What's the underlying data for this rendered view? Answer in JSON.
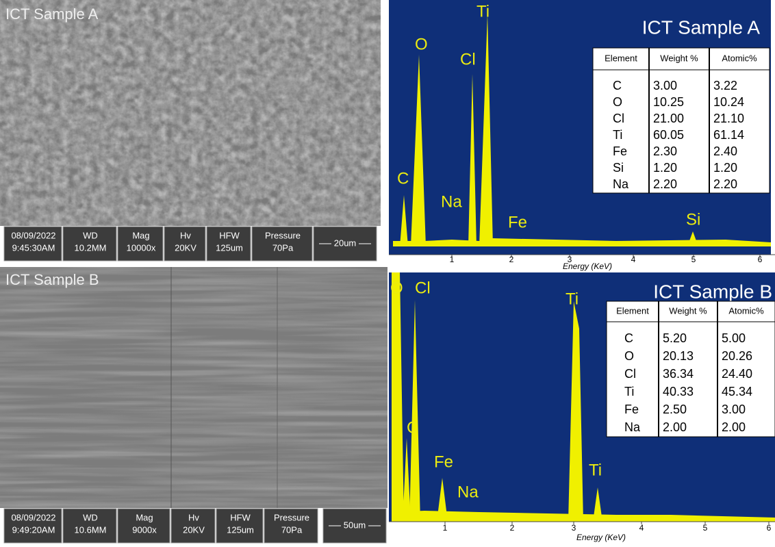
{
  "sample_a": {
    "sem": {
      "label": "ICT Sample A",
      "info": [
        [
          "08/09/2022",
          "9:45:30AM"
        ],
        [
          "WD",
          "10.2MM"
        ],
        [
          "Mag",
          "10000x"
        ],
        [
          "Hv",
          "20KV"
        ],
        [
          "HFW",
          "125um"
        ],
        [
          "Pressure",
          "70Pa"
        ]
      ],
      "scale": "20um"
    },
    "eds": {
      "title": "ICT Sample A",
      "columns": [
        "Element",
        "Weight %",
        "Atomic%"
      ],
      "rows": [
        [
          "C",
          "3.00",
          "3.22"
        ],
        [
          "O",
          "10.25",
          "10.24"
        ],
        [
          "Cl",
          "21.00",
          "21.10"
        ],
        [
          "Ti",
          "60.05",
          "61.14"
        ],
        [
          "Fe",
          "2.30",
          "2.40"
        ],
        [
          "Si",
          "1.20",
          "1.20"
        ],
        [
          "Na",
          "2.20",
          "2.20"
        ]
      ],
      "peaks": [
        "O",
        "Cl",
        "Ti",
        "C",
        "Na",
        "Fe",
        "Si"
      ],
      "xticks": [
        "1",
        "2",
        "3",
        "4",
        "5",
        "6"
      ],
      "xlabel": "Energy (KeV)"
    }
  },
  "sample_b": {
    "sem": {
      "label": "ICT Sample B",
      "info": [
        [
          "08/09/2022",
          "9:49:20AM"
        ],
        [
          "WD",
          "10.6MM"
        ],
        [
          "Mag",
          "9000x"
        ],
        [
          "Hv",
          "20KV"
        ],
        [
          "HFW",
          "125um"
        ],
        [
          "Pressure",
          "70Pa"
        ]
      ],
      "scale": "50um"
    },
    "eds": {
      "title": "ICT Sample B",
      "columns": [
        "Element",
        "Weight %",
        "Atomic%"
      ],
      "rows": [
        [
          "C",
          "5.20",
          "5.00"
        ],
        [
          "O",
          "20.13",
          "20.26"
        ],
        [
          "Cl",
          "36.34",
          "24.40"
        ],
        [
          "Ti",
          "40.33",
          "45.34"
        ],
        [
          "Fe",
          "2.50",
          "3.00"
        ],
        [
          "Na",
          "2.00",
          "2.00"
        ]
      ],
      "peaks": [
        "O",
        "Cl",
        "Ti",
        "C",
        "Fe",
        "Na",
        "Ti"
      ],
      "xticks": [
        "1",
        "2",
        "3",
        "4",
        "5",
        "6"
      ],
      "xlabel": "Energy (KeV)"
    }
  }
}
